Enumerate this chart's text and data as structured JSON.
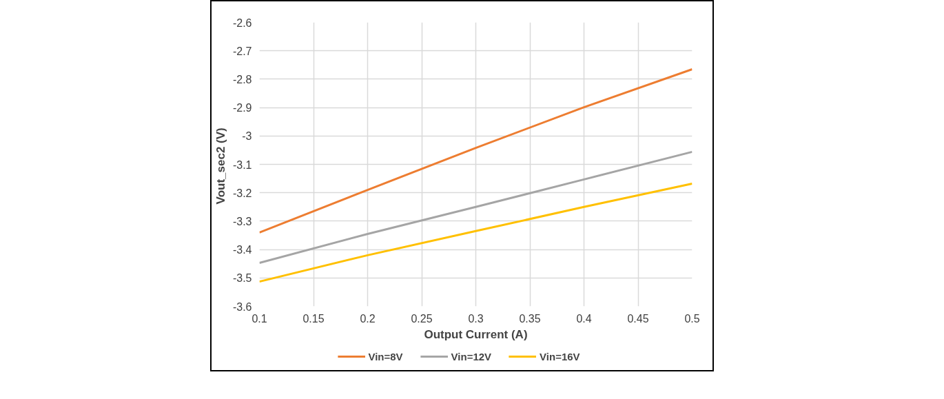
{
  "chart_data": {
    "type": "line",
    "xlabel": "Output Current (A)",
    "ylabel": "Vout_sec2  (V)",
    "x": [
      0.1,
      0.2,
      0.3,
      0.4,
      0.5
    ],
    "series": [
      {
        "name": "Vin=8V",
        "color": "#ed7d31",
        "values": [
          -3.34,
          -3.19,
          -3.042,
          -2.899,
          -2.765
        ]
      },
      {
        "name": "Vin=12V",
        "color": "#a5a5a5",
        "values": [
          -3.447,
          -3.345,
          -3.25,
          -3.153,
          -3.056
        ]
      },
      {
        "name": "Vin=16V",
        "color": "#ffc000",
        "values": [
          -3.513,
          -3.42,
          -3.335,
          -3.25,
          -3.168
        ]
      }
    ],
    "xlim": [
      0.1,
      0.5
    ],
    "xticks": [
      0.1,
      0.15,
      0.2,
      0.25,
      0.3,
      0.35,
      0.4,
      0.45,
      0.5
    ],
    "ylim": [
      -3.6,
      -2.6
    ],
    "yticks": [
      -3.6,
      -3.5,
      -3.4,
      -3.3,
      -3.2,
      -3.1,
      -3,
      -2.9,
      -2.8,
      -2.7,
      -2.6
    ],
    "grid": true,
    "legend": "bottom",
    "marker": "none",
    "line_style": "solid"
  }
}
